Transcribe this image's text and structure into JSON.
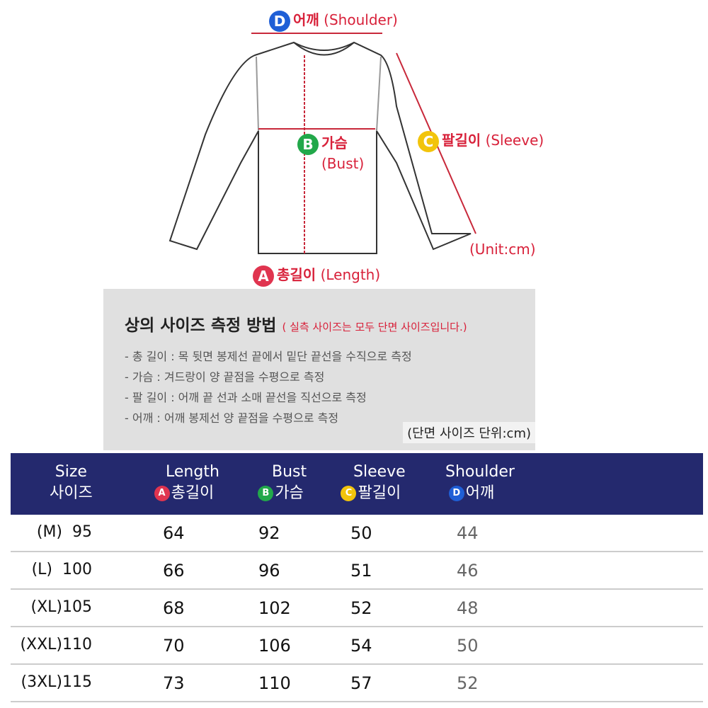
{
  "diagram": {
    "labels": {
      "D": {
        "badge": "D",
        "ko": "어깨",
        "en": "(Shoulder)",
        "color": "#1f5fd6"
      },
      "B": {
        "badge": "B",
        "ko": "가슴",
        "en": "(Bust)",
        "color": "#22a84a"
      },
      "C": {
        "badge": "C",
        "ko": "팔길이",
        "en": "(Sleeve)",
        "color": "#f2c40c"
      },
      "A": {
        "badge": "A",
        "ko": "총길이",
        "en": "(Length)",
        "color": "#e0344f"
      }
    },
    "unit": "(Unit:cm)",
    "line_color": "#c8283a"
  },
  "howto": {
    "title": "상의 사이즈 측정 방법",
    "note": "( 실측 사이즈는 모두 단면 사이즈입니다.)",
    "steps": [
      "- 총 길이 : 목 뒷면 봉제선 끝에서 밑단 끝선을 수직으로 측정",
      "- 가슴 : 겨드랑이 양 끝점을 수평으로 측정",
      "- 팔 길이 : 어깨 끝 선과 소매 끝선을 직선으로 측정",
      "- 어깨 : 어깨 봉제선 양 끝점을 수평으로 측정"
    ],
    "unit": "(단면 사이즈 단위:cm)"
  },
  "table": {
    "header_color": "#24296e",
    "columns": [
      {
        "en": "Size",
        "ko": "사이즈",
        "badge": ""
      },
      {
        "en": "Length",
        "ko": "총길이",
        "badge": "A"
      },
      {
        "en": "Bust",
        "ko": "가슴",
        "badge": "B"
      },
      {
        "en": "Sleeve",
        "ko": "팔길이",
        "badge": "C"
      },
      {
        "en": "Shoulder",
        "ko": "어깨",
        "badge": "D"
      }
    ],
    "rows": [
      [
        "(M)  95",
        "64",
        "92",
        "50",
        "44"
      ],
      [
        "(L)  100",
        "66",
        "96",
        "51",
        "46"
      ],
      [
        "(XL)105",
        "68",
        "102",
        "52",
        "48"
      ],
      [
        "(XXL)110",
        "70",
        "106",
        "54",
        "50"
      ],
      [
        "(3XL)115",
        "73",
        "110",
        "57",
        "52"
      ]
    ]
  }
}
